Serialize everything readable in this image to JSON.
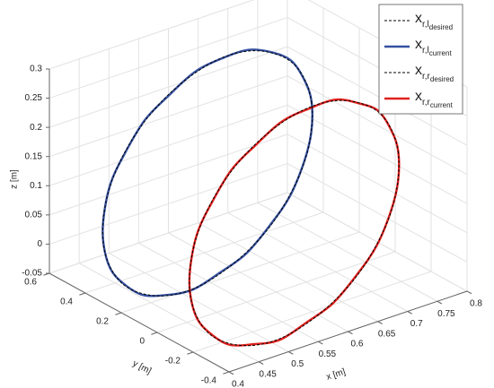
{
  "chart_data": {
    "type": "line3d",
    "xlabel": "x [m]",
    "ylabel": "y [m]",
    "zlabel": "z [m]",
    "xlim": [
      0.4,
      0.8
    ],
    "xticks": [
      0.4,
      0.45,
      0.5,
      0.55,
      0.6,
      0.65,
      0.7,
      0.75,
      0.8
    ],
    "ylim": [
      -0.4,
      0.6
    ],
    "yticks": [
      -0.4,
      -0.2,
      0,
      0.2,
      0.4,
      0.6
    ],
    "zlim": [
      -0.05,
      0.3
    ],
    "zticks": [
      -0.05,
      0,
      0.05,
      0.1,
      0.15,
      0.2,
      0.25,
      0.3
    ],
    "grid": true,
    "legend": "upper right",
    "closed": true,
    "series": [
      {
        "name": "x",
        "sub": "r,l",
        "subsub": "desired",
        "color": "#000000",
        "dash": true,
        "x": [
          0.735,
          0.729,
          0.712,
          0.684,
          0.648,
          0.605,
          0.56,
          0.515,
          0.473,
          0.436,
          0.408,
          0.391,
          0.385,
          0.391,
          0.408,
          0.436,
          0.473,
          0.515,
          0.56,
          0.605,
          0.648,
          0.684,
          0.712,
          0.729
        ],
        "y": [
          0.25,
          0.268,
          0.285,
          0.299,
          0.311,
          0.318,
          0.32,
          0.318,
          0.311,
          0.299,
          0.285,
          0.268,
          0.25,
          0.232,
          0.215,
          0.201,
          0.189,
          0.182,
          0.18,
          0.182,
          0.189,
          0.201,
          0.215,
          0.232
        ],
        "z": [
          0.185,
          0.224,
          0.257,
          0.28,
          0.294,
          0.296,
          0.285,
          0.264,
          0.234,
          0.196,
          0.153,
          0.108,
          0.065,
          0.026,
          -0.007,
          -0.03,
          -0.044,
          -0.046,
          -0.035,
          -0.014,
          0.016,
          0.054,
          0.097,
          0.142
        ]
      },
      {
        "name": "x",
        "sub": "r,l",
        "subsub": "current",
        "color": "#3550a0",
        "dash": false,
        "x": [
          0.735,
          0.729,
          0.712,
          0.684,
          0.648,
          0.605,
          0.56,
          0.515,
          0.473,
          0.436,
          0.408,
          0.391,
          0.385,
          0.391,
          0.408,
          0.436,
          0.473,
          0.515,
          0.56,
          0.605,
          0.648,
          0.684,
          0.712,
          0.729
        ],
        "y": [
          0.25,
          0.268,
          0.285,
          0.299,
          0.311,
          0.318,
          0.32,
          0.318,
          0.311,
          0.299,
          0.285,
          0.268,
          0.25,
          0.232,
          0.215,
          0.201,
          0.189,
          0.182,
          0.18,
          0.182,
          0.189,
          0.201,
          0.215,
          0.232
        ],
        "z": [
          0.187,
          0.222,
          0.259,
          0.281,
          0.296,
          0.295,
          0.287,
          0.262,
          0.236,
          0.194,
          0.155,
          0.106,
          0.067,
          0.024,
          -0.005,
          -0.032,
          -0.043,
          -0.047,
          -0.033,
          -0.016,
          0.018,
          0.052,
          0.099,
          0.14
        ]
      },
      {
        "name": "x",
        "sub": "r,r",
        "subsub": "desired",
        "color": "#000000",
        "dash": true,
        "x": [
          0.775,
          0.769,
          0.752,
          0.724,
          0.688,
          0.645,
          0.6,
          0.555,
          0.513,
          0.476,
          0.448,
          0.431,
          0.425,
          0.431,
          0.448,
          0.476,
          0.513,
          0.555,
          0.6,
          0.645,
          0.688,
          0.724,
          0.752,
          0.769
        ],
        "y": [
          -0.1,
          -0.082,
          -0.065,
          -0.051,
          -0.039,
          -0.032,
          -0.03,
          -0.032,
          -0.039,
          -0.051,
          -0.065,
          -0.082,
          -0.1,
          -0.118,
          -0.135,
          -0.149,
          -0.161,
          -0.168,
          -0.17,
          -0.168,
          -0.161,
          -0.149,
          -0.135,
          -0.118
        ],
        "z": [
          0.145,
          0.184,
          0.217,
          0.24,
          0.254,
          0.256,
          0.245,
          0.224,
          0.194,
          0.156,
          0.113,
          0.068,
          0.025,
          -0.014,
          -0.047,
          -0.07,
          -0.084,
          -0.086,
          -0.075,
          -0.054,
          -0.024,
          0.014,
          0.057,
          0.102
        ]
      },
      {
        "name": "x",
        "sub": "r,r",
        "subsub": "current",
        "color": "#e0201c",
        "dash": false,
        "x": [
          0.775,
          0.769,
          0.752,
          0.724,
          0.688,
          0.645,
          0.6,
          0.555,
          0.513,
          0.476,
          0.448,
          0.431,
          0.425,
          0.431,
          0.448,
          0.476,
          0.513,
          0.555,
          0.6,
          0.645,
          0.688,
          0.724,
          0.752,
          0.769
        ],
        "y": [
          -0.1,
          -0.082,
          -0.065,
          -0.051,
          -0.039,
          -0.032,
          -0.03,
          -0.032,
          -0.039,
          -0.051,
          -0.065,
          -0.082,
          -0.1,
          -0.118,
          -0.135,
          -0.149,
          -0.161,
          -0.168,
          -0.17,
          -0.168,
          -0.161,
          -0.149,
          -0.135,
          -0.118
        ],
        "z": [
          0.147,
          0.182,
          0.219,
          0.239,
          0.256,
          0.254,
          0.247,
          0.222,
          0.196,
          0.154,
          0.115,
          0.066,
          0.027,
          -0.016,
          -0.045,
          -0.072,
          -0.082,
          -0.088,
          -0.073,
          -0.056,
          -0.022,
          0.012,
          0.059,
          0.1
        ]
      }
    ]
  }
}
